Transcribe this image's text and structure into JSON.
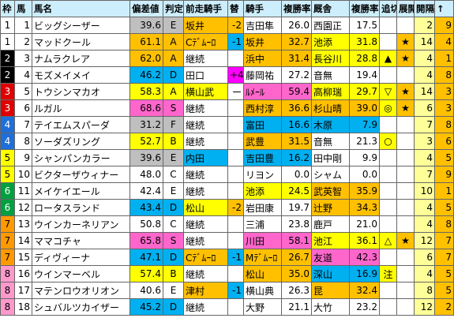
{
  "table": {
    "header": [
      "枠",
      "馬",
      "馬名",
      "偏差値",
      "判定",
      "前走騎手",
      "替",
      "騎手",
      "複勝率",
      "厩舎",
      "複勝率",
      "追切",
      "展開",
      "開隔",
      "↑"
    ],
    "rows": [
      [
        "1",
        "1",
        "ビッグシーザー",
        "39.6",
        "E",
        "坂井",
        "-2",
        "吉田隼",
        "26.0",
        "西園正",
        "17.5",
        null,
        null,
        "2",
        "9"
      ],
      [
        "1",
        "2",
        "マッドクール",
        "61.1",
        "A",
        "Cﾃﾞﾑｰﾛ",
        "-1",
        "坂井",
        "32.7",
        "池添",
        "31.8",
        null,
        "★",
        "14",
        "4"
      ],
      [
        "2",
        "3",
        "ナムラクレア",
        "62.0",
        "A",
        "継続",
        null,
        "浜中",
        "31.4",
        "長谷川",
        "28.8",
        "▲",
        "★",
        "4",
        "1"
      ],
      [
        "2",
        "4",
        "モズメイメイ",
        "46.2",
        "D",
        "田口",
        "+4",
        "藤岡祐",
        "27.2",
        "音無",
        "19.4",
        null,
        null,
        "4",
        "8"
      ],
      [
        "3",
        "5",
        "トウシンマカオ",
        "58.3",
        "A",
        "横山武",
        "ー",
        "ﾙﾒｰﾙ",
        "59.4",
        "高柳瑞",
        "29.7",
        "▽",
        "★",
        "14",
        "3"
      ],
      [
        "3",
        "6",
        "ルガル",
        "68.6",
        "S",
        "継続",
        null,
        "西村淳",
        "36.6",
        "杉山晴",
        "39.0",
        "◎",
        "★",
        "6",
        "3"
      ],
      [
        "4",
        "7",
        "テイエムスパーダ",
        "31.2",
        "F",
        "継続",
        null,
        "富田",
        "16.6",
        "木原",
        "7.9",
        null,
        null,
        "7",
        "8"
      ],
      [
        "4",
        "8",
        "ソーダズリング",
        "52.7",
        "B",
        "継続",
        null,
        "武豊",
        "31.5",
        "音無",
        "21.3",
        "○",
        null,
        "3",
        "6"
      ],
      [
        "5",
        "9",
        "シャンパンカラー",
        "39.6",
        "E",
        "内田",
        null,
        "吉田豊",
        "16.2",
        "田中剛",
        "9.9",
        null,
        null,
        "4",
        "5"
      ],
      [
        "5",
        "10",
        "ビクターザウィナー",
        "48.0",
        "C",
        "継続",
        null,
        "リヨン",
        "0.0",
        "シャム",
        "0.0",
        null,
        null,
        "7",
        "9"
      ],
      [
        "6",
        "11",
        "メイケイエール",
        "42.4",
        "E",
        "継続",
        null,
        "池添",
        "24.5",
        "武英智",
        "35.9",
        null,
        null,
        "10",
        "1"
      ],
      [
        "6",
        "12",
        "ロータスランド",
        "43.4",
        "D",
        "松山",
        "-2",
        "岩田康",
        "19.7",
        "辻野",
        "34.3",
        null,
        null,
        "4",
        "5"
      ],
      [
        "7",
        "13",
        "ウインカーネリアン",
        "50.8",
        "C",
        "継続",
        null,
        "三浦",
        "23.8",
        "鹿戸",
        "21.0",
        null,
        null,
        "4",
        "8"
      ],
      [
        "7",
        "14",
        "ママコチャ",
        "65.8",
        "S",
        "継続",
        null,
        "川田",
        "58.1",
        "池江",
        "36.1",
        "△",
        "★",
        "12",
        "7"
      ],
      [
        "7",
        "15",
        "ディヴィーナ",
        "47.1",
        "D",
        "Cﾃﾞﾑｰﾛ",
        "-1",
        "Mﾃﾞﾑｰﾛ",
        "26.7",
        "友道",
        "42.3",
        null,
        null,
        "6",
        "7"
      ],
      [
        "8",
        "16",
        "ウインマーベル",
        "57.4",
        "B",
        "継続",
        null,
        "松山",
        "35.0",
        "深山",
        "16.9",
        "注",
        null,
        "4",
        "5"
      ],
      [
        "8",
        "17",
        "マテンロウオリオン",
        "40.6",
        "E",
        "津村",
        "-1",
        "横山典",
        "26.3",
        "昆",
        "32.4",
        null,
        null,
        "8",
        "5"
      ],
      [
        "8",
        "18",
        "シュバルツカイザー",
        "45.2",
        "D",
        "継続",
        null,
        "大野",
        "21.1",
        "大竹",
        "23.2",
        null,
        null,
        "12",
        "2"
      ]
    ]
  }
}
